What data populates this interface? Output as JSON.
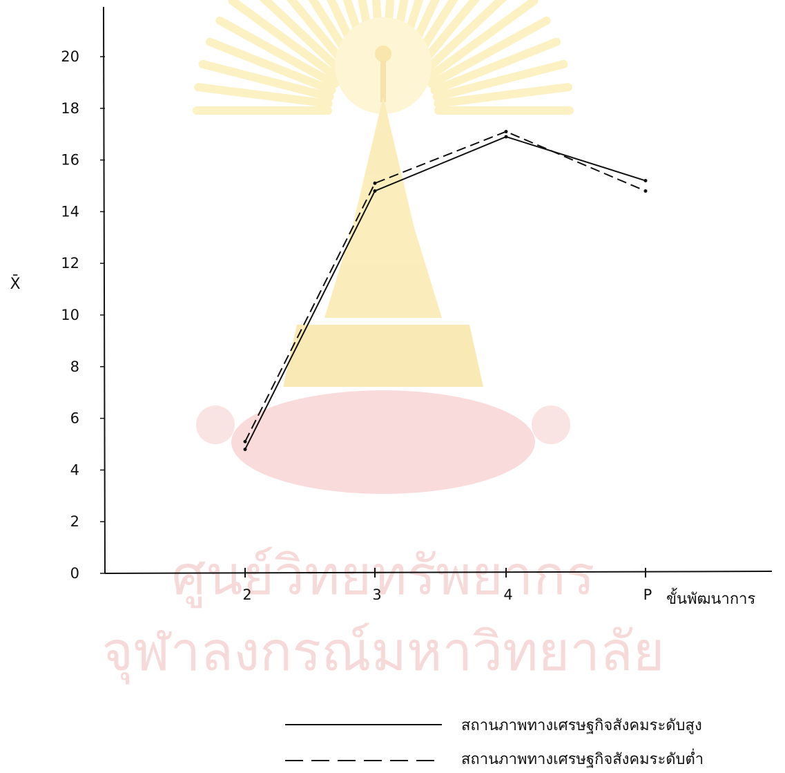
{
  "chart_data": {
    "type": "line",
    "categories": [
      "2",
      "3",
      "4",
      "P"
    ],
    "ylabel": "X̄",
    "xlabel": "ขั้นพัฒนาการ",
    "ylim": [
      0,
      20
    ],
    "y_ticks": [
      "0",
      "2",
      "4",
      "6",
      "8",
      "10",
      "12",
      "14",
      "16",
      "18",
      "20"
    ],
    "grid": false,
    "legend_position": "bottom-right",
    "series": [
      {
        "name": "สถานภาพทางเศรษฐกิจสังคมระดับสูง",
        "line_style": "solid",
        "color": "#111111",
        "values": [
          4.8,
          14.8,
          16.9,
          15.2
        ]
      },
      {
        "name": "สถานภาพทางเศรษฐกิจสังคมระดับต่ำ",
        "line_style": "dashed",
        "color": "#111111",
        "values": [
          5.1,
          15.1,
          17.1,
          14.8
        ]
      }
    ]
  },
  "watermark": {
    "line1": "ศูนย์วิทยทรัพยากร",
    "line2": "จุฬาลงกรณ์มหาวิทยาลัย",
    "color": "#f6dada",
    "emblem_color": "#f9e27a"
  }
}
